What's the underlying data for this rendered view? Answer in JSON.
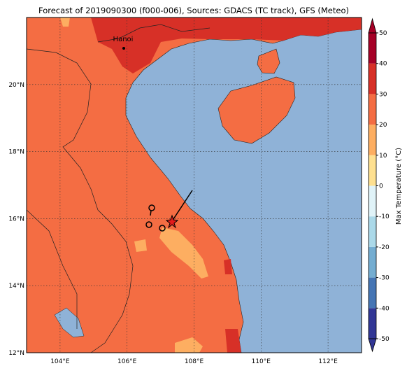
{
  "title": "Forecast of 2019090300 (f000-006), Sources: GDACS (TC track), GFS (Meteo)",
  "map": {
    "lon_range": [
      103,
      113
    ],
    "lat_range": [
      12,
      22
    ],
    "lon_ticks": [
      {
        "value": 104,
        "label": "104°E"
      },
      {
        "value": 106,
        "label": "106°E"
      },
      {
        "value": 108,
        "label": "108°E"
      },
      {
        "value": 110,
        "label": "110°E"
      },
      {
        "value": 112,
        "label": "112°E"
      }
    ],
    "lat_ticks": [
      {
        "value": 12,
        "label": "12°N"
      },
      {
        "value": 14,
        "label": "14°N"
      },
      {
        "value": 16,
        "label": "16°N"
      },
      {
        "value": 18,
        "label": "18°N"
      },
      {
        "value": 20,
        "label": "20°N"
      }
    ],
    "city": "Hanoi"
  },
  "colorbar": {
    "label": "Max Temperature (°C)",
    "range": [
      -50,
      50
    ],
    "ticks": [
      -50,
      -40,
      -30,
      -20,
      -10,
      0,
      10,
      20,
      30,
      40,
      50
    ],
    "colors": [
      "#313695",
      "#4575b4",
      "#74add1",
      "#abd9e9",
      "#e0f3f8",
      "#fee090",
      "#fdae61",
      "#f46d43",
      "#d73027",
      "#a50026"
    ]
  }
}
